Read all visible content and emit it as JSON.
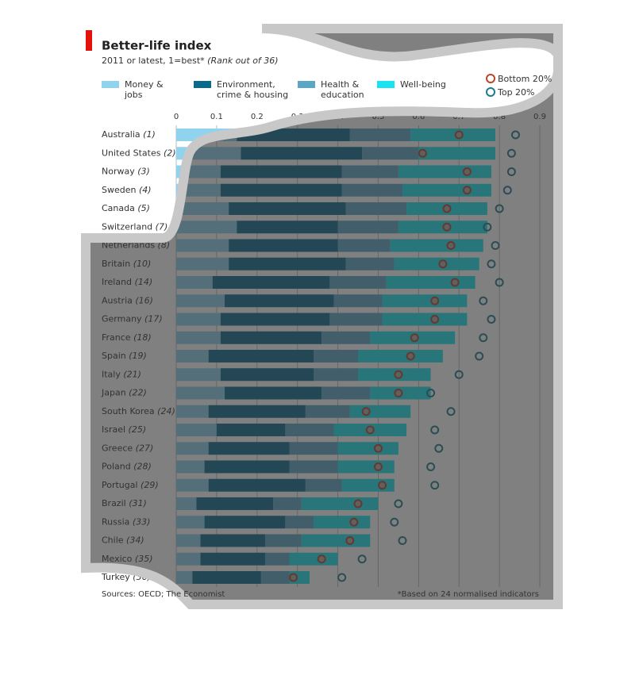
{
  "chart_data": {
    "type": "stacked-bar-horizontal",
    "title": "Better-life index",
    "subtitle": "2011 or latest, 1=best*",
    "subtitle_note": "(Rank out of 36)",
    "source": "Sources: OECD; The Economist",
    "footnote": "*Based on 24 normalised indicators",
    "categories": [
      "Australia",
      "United States",
      "Norway",
      "Sweden",
      "Canada",
      "Switzerland",
      "Netherlands",
      "Britain",
      "Ireland",
      "Austria",
      "Germany",
      "France",
      "Spain",
      "Italy",
      "Japan",
      "South Korea",
      "Israel",
      "Greece",
      "Poland",
      "Portugal",
      "Brazil",
      "Russia",
      "Chile",
      "Mexico",
      "Turkey"
    ],
    "ranks": [
      "(1)",
      "(2)",
      "(3)",
      "(4)",
      "(5)",
      "(7)",
      "(8)",
      "(10)",
      "(14)",
      "(16)",
      "(17)",
      "(18)",
      "(19)",
      "(21)",
      "(22)",
      "(24)",
      "(25)",
      "(27)",
      "(28)",
      "(29)",
      "(31)",
      "(33)",
      "(34)",
      "(35)",
      "(36)"
    ],
    "series": [
      {
        "name": "Money & jobs",
        "color": "#8fd3ef",
        "values": [
          0.15,
          0.16,
          0.11,
          0.11,
          0.13,
          0.15,
          0.13,
          0.13,
          0.09,
          0.12,
          0.11,
          0.11,
          0.08,
          0.11,
          0.12,
          0.08,
          0.1,
          0.08,
          0.07,
          0.08,
          0.05,
          0.07,
          0.06,
          0.06,
          0.04
        ]
      },
      {
        "name": "Environment, crime & housing",
        "color": "#0b6a8c",
        "values": [
          0.28,
          0.3,
          0.3,
          0.3,
          0.29,
          0.25,
          0.27,
          0.29,
          0.29,
          0.27,
          0.27,
          0.25,
          0.26,
          0.23,
          0.24,
          0.24,
          0.17,
          0.2,
          0.21,
          0.24,
          0.19,
          0.2,
          0.16,
          0.16,
          0.17
        ]
      },
      {
        "name": "Health & education",
        "color": "#5aa6c4",
        "values": [
          0.15,
          0.14,
          0.14,
          0.15,
          0.15,
          0.15,
          0.13,
          0.12,
          0.14,
          0.12,
          0.13,
          0.12,
          0.11,
          0.11,
          0.12,
          0.11,
          0.12,
          0.12,
          0.12,
          0.09,
          0.07,
          0.07,
          0.09,
          0.06,
          0.07
        ]
      },
      {
        "name": "Well-being",
        "color": "#19e3f0",
        "values": [
          0.21,
          0.19,
          0.23,
          0.22,
          0.2,
          0.22,
          0.23,
          0.21,
          0.22,
          0.21,
          0.21,
          0.21,
          0.21,
          0.18,
          0.15,
          0.15,
          0.18,
          0.15,
          0.14,
          0.13,
          0.19,
          0.14,
          0.17,
          0.12,
          0.05
        ]
      }
    ],
    "markers": [
      {
        "name": "Bottom 20%",
        "color": "#b5462a",
        "values": [
          0.7,
          0.61,
          0.72,
          0.72,
          0.67,
          0.67,
          0.68,
          0.66,
          0.69,
          0.64,
          0.64,
          0.59,
          0.58,
          0.55,
          0.55,
          0.47,
          0.48,
          0.5,
          0.5,
          0.51,
          0.45,
          0.44,
          0.43,
          0.36,
          0.29
        ]
      },
      {
        "name": "Top 20%",
        "color": "#1f7a8c",
        "values": [
          0.84,
          0.83,
          0.83,
          0.82,
          0.8,
          0.77,
          0.79,
          0.78,
          0.8,
          0.76,
          0.78,
          0.76,
          0.75,
          0.7,
          0.63,
          0.68,
          0.64,
          0.65,
          0.63,
          0.64,
          0.55,
          0.54,
          0.56,
          0.46,
          0.41
        ]
      }
    ],
    "xlim": [
      0,
      0.9
    ],
    "xticks": [
      0,
      0.1,
      0.2,
      0.3,
      0.4,
      0.5,
      0.6,
      0.7,
      0.8,
      0.9
    ],
    "grid": true
  }
}
